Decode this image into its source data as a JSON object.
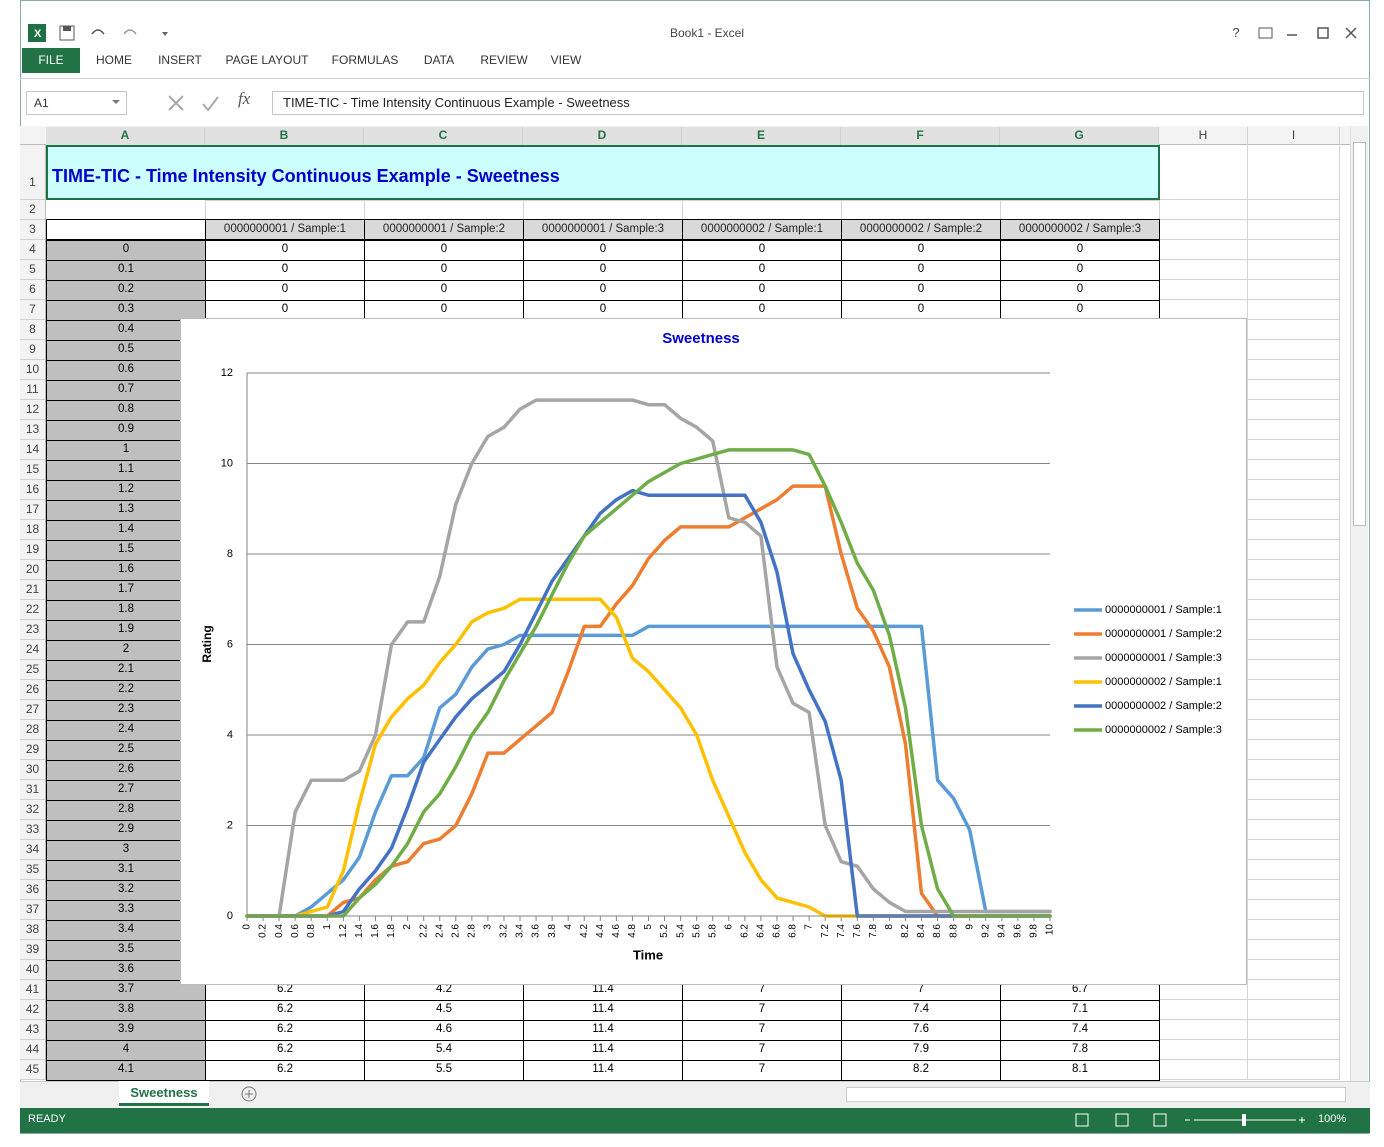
{
  "window": {
    "title": "Book1 - Excel",
    "help": "?"
  },
  "ribbon": {
    "tabs": [
      "FILE",
      "HOME",
      "INSERT",
      "PAGE LAYOUT",
      "FORMULAS",
      "DATA",
      "REVIEW",
      "VIEW"
    ]
  },
  "formula_bar": {
    "name_box": "A1",
    "fx": "fx",
    "formula": "TIME-TIC  - Time Intensity Continuous Example - Sweetness"
  },
  "sheet": {
    "columns": [
      "A",
      "B",
      "C",
      "D",
      "E",
      "F",
      "G",
      "H",
      "I"
    ],
    "row_numbers": [
      1,
      2,
      3,
      4,
      5,
      6,
      7,
      8,
      9,
      10,
      11,
      12,
      13,
      14,
      15,
      16,
      17,
      18,
      19,
      20,
      21,
      22,
      23,
      24,
      25,
      26,
      27,
      28,
      29,
      30,
      31,
      32,
      33,
      34,
      35,
      36,
      37,
      38,
      39,
      40,
      41,
      42,
      43,
      44,
      45
    ],
    "title": "TIME-TIC   - Time Intensity Continuous Example - Sweetness",
    "headers": [
      "0000000001 / Sample:1",
      "0000000001 / Sample:2",
      "0000000001 / Sample:3",
      "0000000002 / Sample:1",
      "0000000002 / Sample:2",
      "0000000002 / Sample:3"
    ],
    "time": [
      0,
      0.1,
      0.2,
      0.3,
      0.4,
      0.5,
      0.6,
      0.7,
      0.8,
      0.9,
      1,
      1.1,
      1.2,
      1.3,
      1.4,
      1.5,
      1.6,
      1.7,
      1.8,
      1.9,
      2,
      2.1,
      2.2,
      2.3,
      2.4,
      2.5,
      2.6,
      2.7,
      2.8,
      2.9,
      3,
      3.1,
      3.2,
      3.3,
      3.4,
      3.5,
      3.6,
      3.7,
      3.8,
      3.9,
      4,
      4.1
    ],
    "rows_top": [
      [
        0,
        0,
        0,
        0,
        0,
        0
      ],
      [
        0,
        0,
        0,
        0,
        0,
        0
      ],
      [
        0,
        0,
        0,
        0,
        0,
        0
      ],
      [
        0,
        0,
        0,
        0,
        0,
        0
      ]
    ],
    "rows_bottom": [
      [
        6.2,
        4.2,
        11.4,
        7,
        7,
        6.7
      ],
      [
        6.2,
        4.5,
        11.4,
        7,
        7.4,
        7.1
      ],
      [
        6.2,
        4.6,
        11.4,
        7,
        7.6,
        7.4
      ],
      [
        6.2,
        5.4,
        11.4,
        7,
        7.9,
        7.8
      ],
      [
        6.2,
        5.5,
        11.4,
        7,
        8.2,
        8.1
      ]
    ],
    "tab": "Sweetness"
  },
  "status_bar": {
    "status": "READY",
    "zoom": "100%"
  },
  "chart_data": {
    "type": "line",
    "title": "Sweetness",
    "x_label": "Time",
    "y_label": "Rating",
    "x": [
      0,
      0.2,
      0.4,
      0.6,
      0.8,
      1,
      1.2,
      1.4,
      1.6,
      1.8,
      2,
      2.2,
      2.4,
      2.6,
      2.8,
      3,
      3.2,
      3.4,
      3.6,
      3.8,
      4,
      4.2,
      4.4,
      4.6,
      4.8,
      5,
      5.2,
      5.4,
      5.6,
      5.8,
      6,
      6.2,
      6.4,
      6.6,
      6.8,
      7,
      7.2,
      7.4,
      7.6,
      7.8,
      8,
      8.2,
      8.4,
      8.6,
      8.8,
      9,
      9.2,
      9.4,
      9.6,
      9.8,
      10
    ],
    "xlim": [
      0,
      10
    ],
    "xticks": [
      0,
      0.2,
      0.4,
      0.6,
      0.8,
      1,
      1.2,
      1.4,
      1.6,
      1.8,
      2,
      2.2,
      2.4,
      2.6,
      2.8,
      3,
      3.2,
      3.4,
      3.6,
      3.8,
      4,
      4.2,
      4.4,
      4.6,
      4.8,
      5,
      5.2,
      5.4,
      5.6,
      5.8,
      6,
      6.2,
      6.4,
      6.6,
      6.8,
      7,
      7.2,
      7.4,
      7.6,
      7.8,
      8,
      8.2,
      8.4,
      8.6,
      8.8,
      9,
      9.2,
      9.4,
      9.6,
      9.8,
      10
    ],
    "ylim": [
      0,
      12
    ],
    "yticks": [
      0,
      2,
      4,
      6,
      8,
      10,
      12
    ],
    "grid": true,
    "legend": "right",
    "series": [
      {
        "name": "0000000001 / Sample:1",
        "color": "#5b9bd5",
        "values": [
          0,
          0,
          0,
          0,
          0.2,
          0.5,
          0.8,
          1.3,
          2.3,
          3.1,
          3.1,
          3.5,
          4.6,
          4.9,
          5.5,
          5.9,
          6,
          6.2,
          6.2,
          6.2,
          6.2,
          6.2,
          6.2,
          6.2,
          6.2,
          6.4,
          6.4,
          6.4,
          6.4,
          6.4,
          6.4,
          6.4,
          6.4,
          6.4,
          6.4,
          6.4,
          6.4,
          6.4,
          6.4,
          6.4,
          6.4,
          6.4,
          6.4,
          3,
          2.6,
          1.9,
          0.1,
          0.1,
          0.1,
          0.1,
          0.1
        ]
      },
      {
        "name": "0000000001 / Sample:2",
        "color": "#ed7d31",
        "values": [
          0,
          0,
          0,
          0,
          0,
          0,
          0.3,
          0.4,
          0.8,
          1.1,
          1.2,
          1.6,
          1.7,
          2,
          2.7,
          3.6,
          3.6,
          3.9,
          4.2,
          4.5,
          5.4,
          6.4,
          6.4,
          6.9,
          7.3,
          7.9,
          8.3,
          8.6,
          8.6,
          8.6,
          8.6,
          8.8,
          9,
          9.2,
          9.5,
          9.5,
          9.5,
          8,
          6.8,
          6.3,
          5.5,
          3.8,
          0.5,
          0,
          0,
          0,
          0,
          0,
          0,
          0,
          0
        ]
      },
      {
        "name": "0000000001 / Sample:3",
        "color": "#a5a5a5",
        "values": [
          0,
          0,
          0,
          2.3,
          3,
          3,
          3,
          3.2,
          4,
          6,
          6.5,
          6.5,
          7.5,
          9.1,
          10,
          10.6,
          10.8,
          11.2,
          11.4,
          11.4,
          11.4,
          11.4,
          11.4,
          11.4,
          11.4,
          11.3,
          11.3,
          11,
          10.8,
          10.5,
          8.8,
          8.7,
          8.4,
          5.5,
          4.7,
          4.5,
          2,
          1.2,
          1.1,
          0.6,
          0.3,
          0.1,
          0.1,
          0.1,
          0.1,
          0.1,
          0.1,
          0.1,
          0.1,
          0.1,
          0.1
        ]
      },
      {
        "name": "0000000002 / Sample:1",
        "color": "#ffc000",
        "values": [
          0,
          0,
          0,
          0,
          0.1,
          0.2,
          1,
          2.5,
          3.8,
          4.4,
          4.8,
          5.1,
          5.6,
          6,
          6.5,
          6.7,
          6.8,
          7,
          7,
          7,
          7,
          7,
          7,
          6.6,
          5.7,
          5.4,
          5,
          4.6,
          4,
          3,
          2.2,
          1.4,
          0.8,
          0.4,
          0.3,
          0.2,
          0,
          0,
          0,
          0,
          0,
          0,
          0,
          0,
          0,
          0,
          0,
          0,
          0,
          0,
          0
        ]
      },
      {
        "name": "0000000002 / Sample:2",
        "color": "#4472c4",
        "values": [
          0,
          0,
          0,
          0,
          0,
          0,
          0.1,
          0.6,
          1,
          1.5,
          2.4,
          3.4,
          3.9,
          4.4,
          4.8,
          5.1,
          5.4,
          6,
          6.7,
          7.4,
          7.9,
          8.4,
          8.9,
          9.2,
          9.4,
          9.3,
          9.3,
          9.3,
          9.3,
          9.3,
          9.3,
          9.3,
          8.7,
          7.6,
          5.8,
          5,
          4.3,
          3,
          0,
          0,
          0,
          0,
          0,
          0,
          0,
          0,
          0,
          0,
          0,
          0,
          0
        ]
      },
      {
        "name": "0000000002 / Sample:3",
        "color": "#70ad47",
        "values": [
          0,
          0,
          0,
          0,
          0,
          0,
          0,
          0.4,
          0.7,
          1.1,
          1.6,
          2.3,
          2.7,
          3.3,
          4,
          4.5,
          5.2,
          5.8,
          6.4,
          7.1,
          7.8,
          8.4,
          8.7,
          9,
          9.3,
          9.6,
          9.8,
          10,
          10.1,
          10.2,
          10.3,
          10.3,
          10.3,
          10.3,
          10.3,
          10.2,
          9.5,
          8.7,
          7.8,
          7.2,
          6.2,
          4.6,
          2,
          0.6,
          0,
          0,
          0,
          0,
          0,
          0,
          0
        ]
      }
    ]
  }
}
